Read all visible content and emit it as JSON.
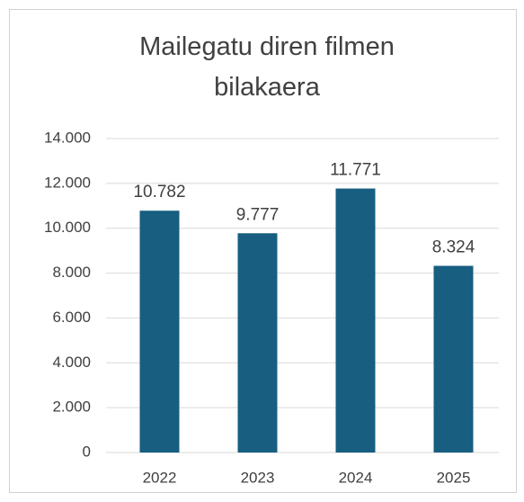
{
  "chart_data": {
    "type": "bar",
    "title": "Mailegatu diren filmen bilakaera",
    "categories": [
      "2022",
      "2023",
      "2024",
      "2025"
    ],
    "values": [
      10782,
      9777,
      11771,
      8324
    ],
    "value_labels": [
      "10.782",
      "9.777",
      "11.771",
      "8.324"
    ],
    "color": "#175e80",
    "ylim": [
      0,
      14000
    ],
    "yticks": [
      0,
      {
        "value": 2000,
        "label": "2.000"
      },
      {
        "value": 4000,
        "label": "4.000"
      },
      {
        "value": 6000,
        "label": "6.000"
      },
      {
        "value": 8000,
        "label": "8.000"
      },
      {
        "value": 10000,
        "label": "10.000"
      },
      {
        "value": 12000,
        "label": "12.000"
      },
      {
        "value": 14000,
        "label": "14.000"
      }
    ],
    "grid": true
  }
}
